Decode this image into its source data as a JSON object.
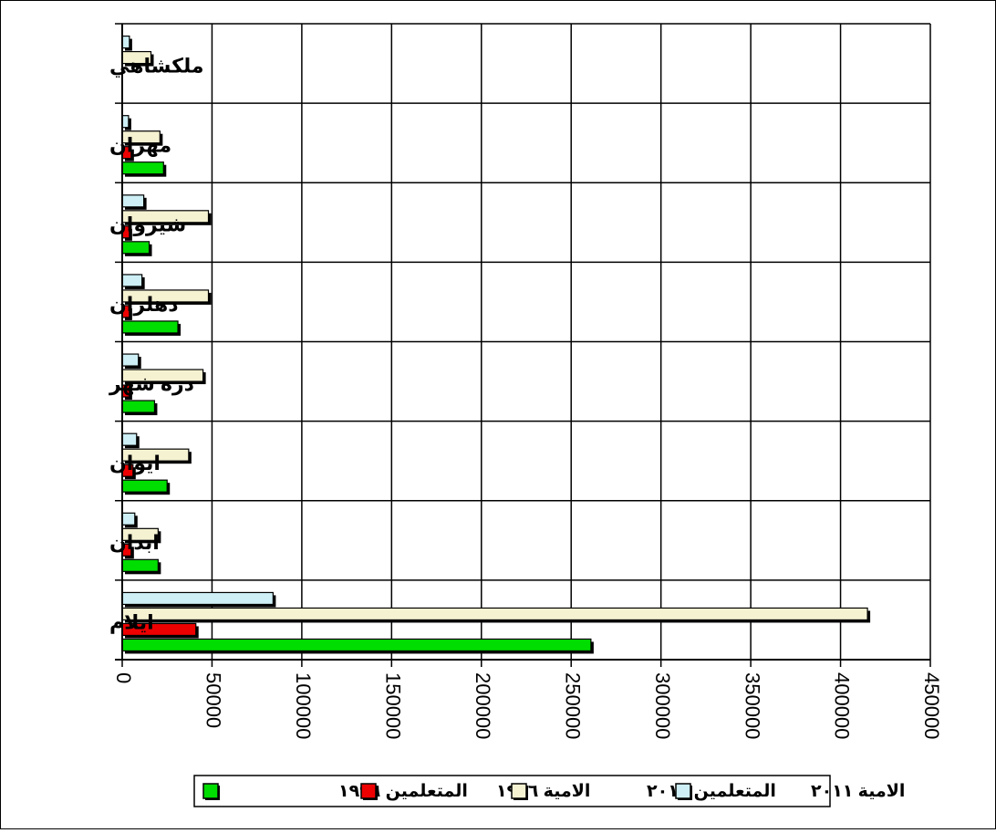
{
  "chart_data": {
    "type": "bar",
    "orientation": "horizontal",
    "categories": [
      "ملكشاهي",
      "مهران",
      "شيروان",
      "دهلران",
      "دره شهر",
      "ايوان",
      "ابدان",
      "ايلام"
    ],
    "series": [
      {
        "name": "الامية ٢٠١١",
        "color": "#cdeff5",
        "values": [
          4000,
          3500,
          12000,
          11000,
          9000,
          8000,
          7000,
          84000
        ]
      },
      {
        "name": "المتعلمين ٢٠١١",
        "color": "#f5f2d2",
        "values": [
          16000,
          21000,
          48000,
          48000,
          45000,
          37000,
          20000,
          415000
        ]
      },
      {
        "name": "الامية ١٩٩٦",
        "color": "#ee0000",
        "values": [
          0,
          5000,
          4000,
          4000,
          4000,
          6000,
          5000,
          41000
        ]
      },
      {
        "name": "المتعلمين ١٩٩٦",
        "color": "#00dd00",
        "values": [
          0,
          23000,
          15000,
          31000,
          18000,
          25000,
          20000,
          261000
        ]
      }
    ],
    "xlim": [
      0,
      450000
    ],
    "xticks": [
      "0",
      "50000",
      "100000",
      "150000",
      "200000",
      "250000",
      "300000",
      "350000",
      "400000",
      "450000"
    ],
    "grid": true,
    "legend_position": "bottom"
  }
}
